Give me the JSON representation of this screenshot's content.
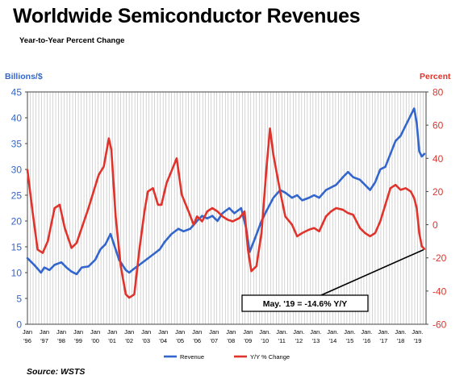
{
  "title": "Worldwide Semiconductor Revenues",
  "subtitle": "Year-to-Year Percent Change",
  "source": "Source: WSTS",
  "chart_data": {
    "type": "line",
    "title": "Worldwide Semiconductor Revenues",
    "subtitle": "Year-to-Year Percent Change",
    "y_left": {
      "label": "Billions/$",
      "range": [
        0,
        45
      ],
      "ticks": [
        "0",
        "5",
        "10",
        "15",
        "20",
        "25",
        "30",
        "35",
        "40",
        "45"
      ],
      "color": "#3366cc"
    },
    "y_right": {
      "label": "Percent",
      "range": [
        -60,
        80
      ],
      "ticks": [
        "-60",
        "-40",
        "-20",
        "0",
        "20",
        "40",
        "60",
        "80"
      ],
      "color": "#e0332b"
    },
    "x_range": [
      1996.0,
      2019.5
    ],
    "x_ticks": [
      {
        "line1": "Jan",
        "line2": "'96"
      },
      {
        "line1": "Jan",
        "line2": "'97"
      },
      {
        "line1": "Jan",
        "line2": "'98"
      },
      {
        "line1": "Jan",
        "line2": "'99"
      },
      {
        "line1": "Jan",
        "line2": "'00"
      },
      {
        "line1": "Jan",
        "line2": "'01"
      },
      {
        "line1": "Jan",
        "line2": "'02"
      },
      {
        "line1": "Jan",
        "line2": "'03"
      },
      {
        "line1": "Jan",
        "line2": "'04"
      },
      {
        "line1": "Jan",
        "line2": "'05"
      },
      {
        "line1": "Jan",
        "line2": "'06"
      },
      {
        "line1": "Jan",
        "line2": "'07"
      },
      {
        "line1": "Jan",
        "line2": "'08"
      },
      {
        "line1": "Jan",
        "line2": "'09"
      },
      {
        "line1": "Jan.",
        "line2": "'10"
      },
      {
        "line1": "Jan.",
        "line2": "'11"
      },
      {
        "line1": "Jan.",
        "line2": "'12"
      },
      {
        "line1": "Jan.",
        "line2": "'13"
      },
      {
        "line1": "Jan.",
        "line2": "'14"
      },
      {
        "line1": "Jan.",
        "line2": "'15"
      },
      {
        "line1": "Jan.",
        "line2": "'16"
      },
      {
        "line1": "Jan.",
        "line2": "'17"
      },
      {
        "line1": "Jan.",
        "line2": "'18"
      },
      {
        "line1": "Jan.",
        "line2": "'19"
      }
    ],
    "grid": "vertical",
    "legend_position": "bottom",
    "series": [
      {
        "name": "Revenue",
        "axis": "left",
        "color": "#3366cc",
        "points": [
          [
            1996.0,
            12.8
          ],
          [
            1996.4,
            11.5
          ],
          [
            1996.8,
            10.0
          ],
          [
            1997.0,
            11.0
          ],
          [
            1997.3,
            10.5
          ],
          [
            1997.6,
            11.5
          ],
          [
            1998.0,
            12.0
          ],
          [
            1998.3,
            11.0
          ],
          [
            1998.6,
            10.2
          ],
          [
            1998.9,
            9.7
          ],
          [
            1999.2,
            11.0
          ],
          [
            1999.6,
            11.2
          ],
          [
            2000.0,
            12.5
          ],
          [
            2000.3,
            14.5
          ],
          [
            2000.6,
            15.5
          ],
          [
            2000.9,
            17.5
          ],
          [
            2001.1,
            15.5
          ],
          [
            2001.4,
            12.5
          ],
          [
            2001.8,
            10.5
          ],
          [
            2002.0,
            10.0
          ],
          [
            2002.3,
            10.8
          ],
          [
            2002.6,
            11.5
          ],
          [
            2003.0,
            12.5
          ],
          [
            2003.4,
            13.5
          ],
          [
            2003.8,
            14.5
          ],
          [
            2004.1,
            16.0
          ],
          [
            2004.5,
            17.5
          ],
          [
            2004.9,
            18.5
          ],
          [
            2005.2,
            18.0
          ],
          [
            2005.6,
            18.5
          ],
          [
            2006.0,
            20.0
          ],
          [
            2006.3,
            21.0
          ],
          [
            2006.6,
            20.5
          ],
          [
            2006.9,
            21.0
          ],
          [
            2007.2,
            20.0
          ],
          [
            2007.5,
            21.5
          ],
          [
            2007.9,
            22.5
          ],
          [
            2008.2,
            21.5
          ],
          [
            2008.6,
            22.5
          ],
          [
            2008.9,
            18.5
          ],
          [
            2009.1,
            14.0
          ],
          [
            2009.4,
            16.5
          ],
          [
            2009.8,
            20.0
          ],
          [
            2010.1,
            22.0
          ],
          [
            2010.5,
            24.5
          ],
          [
            2010.9,
            26.0
          ],
          [
            2011.2,
            25.5
          ],
          [
            2011.6,
            24.5
          ],
          [
            2011.9,
            25.0
          ],
          [
            2012.2,
            24.0
          ],
          [
            2012.6,
            24.5
          ],
          [
            2012.9,
            25.0
          ],
          [
            2013.2,
            24.5
          ],
          [
            2013.6,
            26.0
          ],
          [
            2013.9,
            26.5
          ],
          [
            2014.2,
            27.0
          ],
          [
            2014.6,
            28.5
          ],
          [
            2014.9,
            29.5
          ],
          [
            2015.2,
            28.5
          ],
          [
            2015.6,
            28.0
          ],
          [
            2015.9,
            27.0
          ],
          [
            2016.2,
            26.0
          ],
          [
            2016.5,
            27.5
          ],
          [
            2016.8,
            30.0
          ],
          [
            2017.1,
            30.5
          ],
          [
            2017.4,
            33.0
          ],
          [
            2017.7,
            35.5
          ],
          [
            2018.0,
            36.5
          ],
          [
            2018.3,
            38.5
          ],
          [
            2018.6,
            40.5
          ],
          [
            2018.8,
            41.8
          ],
          [
            2018.95,
            39.0
          ],
          [
            2019.1,
            33.5
          ],
          [
            2019.25,
            32.5
          ],
          [
            2019.4,
            33.0
          ]
        ]
      },
      {
        "name": "Y/Y % Change",
        "axis": "right",
        "color": "#e0332b",
        "points": [
          [
            1996.0,
            33.0
          ],
          [
            1996.3,
            8.0
          ],
          [
            1996.6,
            -15.0
          ],
          [
            1996.9,
            -17.0
          ],
          [
            1997.2,
            -10.0
          ],
          [
            1997.6,
            10.0
          ],
          [
            1997.9,
            12.0
          ],
          [
            1998.2,
            -2.0
          ],
          [
            1998.6,
            -14.0
          ],
          [
            1998.9,
            -11.0
          ],
          [
            1999.2,
            -2.0
          ],
          [
            1999.6,
            10.0
          ],
          [
            1999.9,
            20.0
          ],
          [
            2000.2,
            30.0
          ],
          [
            2000.5,
            35.0
          ],
          [
            2000.8,
            52.0
          ],
          [
            2000.95,
            45.0
          ],
          [
            2001.2,
            5.0
          ],
          [
            2001.5,
            -25.0
          ],
          [
            2001.8,
            -42.0
          ],
          [
            2002.0,
            -44.0
          ],
          [
            2002.3,
            -42.0
          ],
          [
            2002.6,
            -15.0
          ],
          [
            2002.9,
            8.0
          ],
          [
            2003.1,
            20.0
          ],
          [
            2003.4,
            22.0
          ],
          [
            2003.7,
            12.0
          ],
          [
            2003.9,
            12.0
          ],
          [
            2004.2,
            25.0
          ],
          [
            2004.6,
            35.0
          ],
          [
            2004.8,
            40.0
          ],
          [
            2005.1,
            18.0
          ],
          [
            2005.5,
            8.0
          ],
          [
            2005.8,
            0.0
          ],
          [
            2006.0,
            5.0
          ],
          [
            2006.3,
            2.0
          ],
          [
            2006.6,
            8.0
          ],
          [
            2006.9,
            10.0
          ],
          [
            2007.2,
            8.0
          ],
          [
            2007.5,
            5.0
          ],
          [
            2007.8,
            3.0
          ],
          [
            2008.1,
            2.0
          ],
          [
            2008.5,
            4.0
          ],
          [
            2008.8,
            8.0
          ],
          [
            2009.0,
            -15.0
          ],
          [
            2009.2,
            -28.0
          ],
          [
            2009.5,
            -25.0
          ],
          [
            2009.8,
            -5.0
          ],
          [
            2010.1,
            35.0
          ],
          [
            2010.3,
            58.0
          ],
          [
            2010.5,
            42.0
          ],
          [
            2010.9,
            20.0
          ],
          [
            2011.2,
            5.0
          ],
          [
            2011.6,
            0.0
          ],
          [
            2011.9,
            -7.0
          ],
          [
            2012.2,
            -5.0
          ],
          [
            2012.6,
            -3.0
          ],
          [
            2012.9,
            -2.0
          ],
          [
            2013.2,
            -4.0
          ],
          [
            2013.6,
            5.0
          ],
          [
            2013.9,
            8.0
          ],
          [
            2014.2,
            10.0
          ],
          [
            2014.6,
            9.0
          ],
          [
            2014.9,
            7.0
          ],
          [
            2015.2,
            6.0
          ],
          [
            2015.6,
            -2.0
          ],
          [
            2015.9,
            -5.0
          ],
          [
            2016.2,
            -7.0
          ],
          [
            2016.5,
            -5.0
          ],
          [
            2016.8,
            2.0
          ],
          [
            2017.1,
            12.0
          ],
          [
            2017.4,
            22.0
          ],
          [
            2017.7,
            24.0
          ],
          [
            2018.0,
            21.0
          ],
          [
            2018.3,
            22.0
          ],
          [
            2018.6,
            20.0
          ],
          [
            2018.8,
            16.0
          ],
          [
            2018.95,
            10.0
          ],
          [
            2019.1,
            -5.0
          ],
          [
            2019.25,
            -13.0
          ],
          [
            2019.4,
            -14.6
          ]
        ]
      }
    ],
    "annotation": {
      "text": "May. '19 = -14.6% Y/Y",
      "x": 2019.4,
      "y": -14.6,
      "axis": "right"
    }
  }
}
